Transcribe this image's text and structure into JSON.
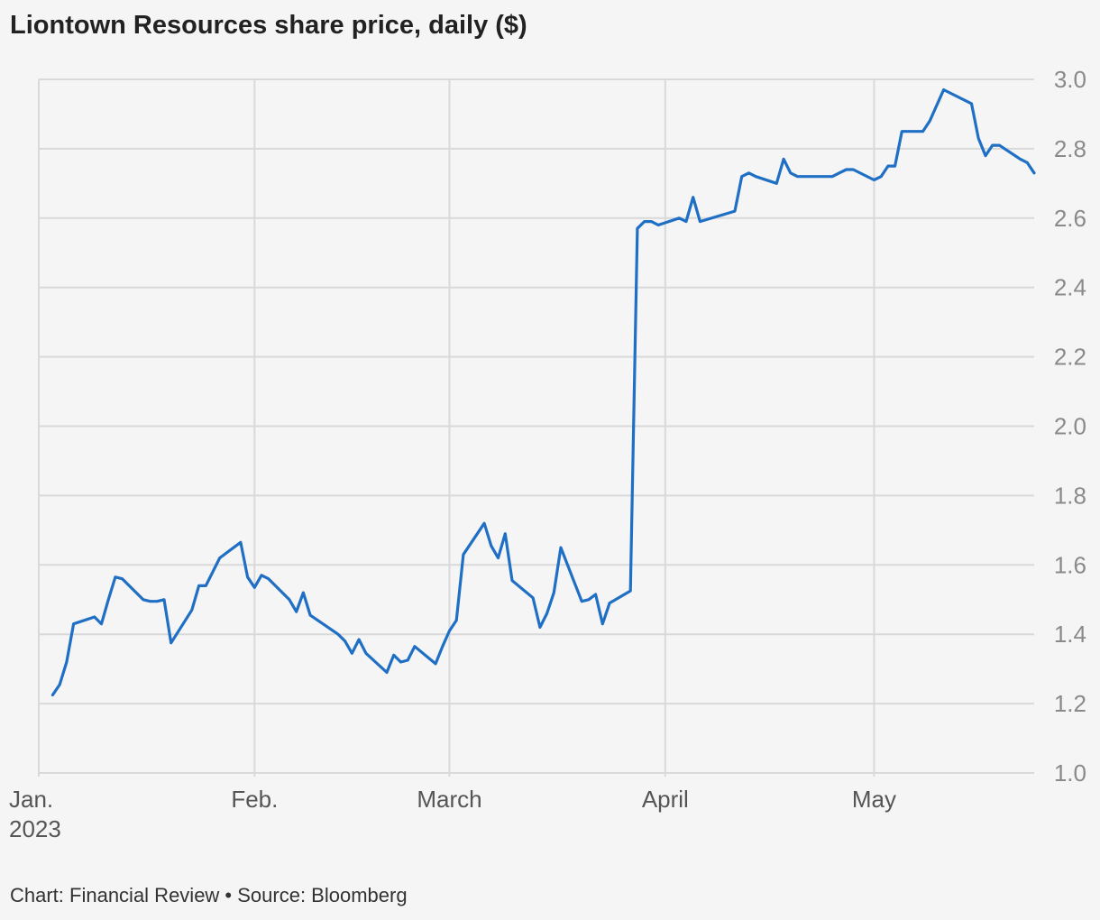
{
  "chart_data": {
    "type": "line",
    "title": "Liontown Resources share price, daily ($)",
    "source": "Chart: Financial Review • Source: Bloomberg",
    "y_axis": {
      "position": "right",
      "min": 1.0,
      "max": 3.0,
      "ticks": [
        "1.0",
        "1.2",
        "1.4",
        "1.6",
        "1.8",
        "2.0",
        "2.2",
        "2.4",
        "2.6",
        "2.8",
        "3.0"
      ]
    },
    "x_axis": {
      "ticks": [
        {
          "label": "Jan.",
          "sublabel": "2023",
          "date": "2023-01-01"
        },
        {
          "label": "Feb.",
          "date": "2023-02-01"
        },
        {
          "label": "March",
          "date": "2023-03-01"
        },
        {
          "label": "April",
          "date": "2023-04-01"
        },
        {
          "label": "May",
          "date": "2023-05-01"
        }
      ],
      "end_date": "2023-05-24"
    },
    "grid": true,
    "series_color": "#1f6fc5",
    "series": [
      {
        "points": [
          [
            "2023-01-03",
            1.225
          ],
          [
            "2023-01-04",
            1.255
          ],
          [
            "2023-01-05",
            1.32
          ],
          [
            "2023-01-06",
            1.43
          ],
          [
            "2023-01-09",
            1.45
          ],
          [
            "2023-01-10",
            1.43
          ],
          [
            "2023-01-11",
            1.5
          ],
          [
            "2023-01-12",
            1.565
          ],
          [
            "2023-01-13",
            1.56
          ],
          [
            "2023-01-16",
            1.5
          ],
          [
            "2023-01-17",
            1.495
          ],
          [
            "2023-01-18",
            1.495
          ],
          [
            "2023-01-19",
            1.5
          ],
          [
            "2023-01-20",
            1.375
          ],
          [
            "2023-01-23",
            1.47
          ],
          [
            "2023-01-24",
            1.54
          ],
          [
            "2023-01-25",
            1.54
          ],
          [
            "2023-01-27",
            1.62
          ],
          [
            "2023-01-30",
            1.665
          ],
          [
            "2023-01-31",
            1.565
          ],
          [
            "2023-02-01",
            1.535
          ],
          [
            "2023-02-02",
            1.57
          ],
          [
            "2023-02-03",
            1.56
          ],
          [
            "2023-02-06",
            1.5
          ],
          [
            "2023-02-07",
            1.465
          ],
          [
            "2023-02-08",
            1.52
          ],
          [
            "2023-02-09",
            1.455
          ],
          [
            "2023-02-13",
            1.4
          ],
          [
            "2023-02-14",
            1.38
          ],
          [
            "2023-02-15",
            1.345
          ],
          [
            "2023-02-16",
            1.385
          ],
          [
            "2023-02-17",
            1.345
          ],
          [
            "2023-02-20",
            1.29
          ],
          [
            "2023-02-21",
            1.34
          ],
          [
            "2023-02-22",
            1.32
          ],
          [
            "2023-02-23",
            1.325
          ],
          [
            "2023-02-24",
            1.365
          ],
          [
            "2023-02-27",
            1.315
          ],
          [
            "2023-02-28",
            1.365
          ],
          [
            "2023-03-01",
            1.41
          ],
          [
            "2023-03-02",
            1.44
          ],
          [
            "2023-03-03",
            1.63
          ],
          [
            "2023-03-06",
            1.72
          ],
          [
            "2023-03-07",
            1.655
          ],
          [
            "2023-03-08",
            1.62
          ],
          [
            "2023-03-09",
            1.69
          ],
          [
            "2023-03-10",
            1.555
          ],
          [
            "2023-03-13",
            1.505
          ],
          [
            "2023-03-14",
            1.42
          ],
          [
            "2023-03-15",
            1.46
          ],
          [
            "2023-03-16",
            1.52
          ],
          [
            "2023-03-17",
            1.65
          ],
          [
            "2023-03-20",
            1.495
          ],
          [
            "2023-03-21",
            1.5
          ],
          [
            "2023-03-22",
            1.515
          ],
          [
            "2023-03-23",
            1.43
          ],
          [
            "2023-03-24",
            1.49
          ],
          [
            "2023-03-27",
            1.525
          ],
          [
            "2023-03-28",
            2.57
          ],
          [
            "2023-03-29",
            2.59
          ],
          [
            "2023-03-30",
            2.59
          ],
          [
            "2023-03-31",
            2.58
          ],
          [
            "2023-04-03",
            2.6
          ],
          [
            "2023-04-04",
            2.59
          ],
          [
            "2023-04-05",
            2.66
          ],
          [
            "2023-04-06",
            2.59
          ],
          [
            "2023-04-11",
            2.62
          ],
          [
            "2023-04-12",
            2.72
          ],
          [
            "2023-04-13",
            2.73
          ],
          [
            "2023-04-14",
            2.72
          ],
          [
            "2023-04-17",
            2.7
          ],
          [
            "2023-04-18",
            2.77
          ],
          [
            "2023-04-19",
            2.73
          ],
          [
            "2023-04-20",
            2.72
          ],
          [
            "2023-04-24",
            2.72
          ],
          [
            "2023-04-25",
            2.72
          ],
          [
            "2023-04-26",
            2.73
          ],
          [
            "2023-04-27",
            2.74
          ],
          [
            "2023-04-28",
            2.74
          ],
          [
            "2023-05-01",
            2.71
          ],
          [
            "2023-05-02",
            2.72
          ],
          [
            "2023-05-03",
            2.75
          ],
          [
            "2023-05-04",
            2.75
          ],
          [
            "2023-05-05",
            2.85
          ],
          [
            "2023-05-08",
            2.85
          ],
          [
            "2023-05-09",
            2.88
          ],
          [
            "2023-05-11",
            2.97
          ],
          [
            "2023-05-15",
            2.93
          ],
          [
            "2023-05-16",
            2.83
          ],
          [
            "2023-05-17",
            2.78
          ],
          [
            "2023-05-18",
            2.81
          ],
          [
            "2023-05-19",
            2.81
          ],
          [
            "2023-05-22",
            2.77
          ],
          [
            "2023-05-23",
            2.76
          ],
          [
            "2023-05-24",
            2.73
          ]
        ]
      }
    ]
  }
}
